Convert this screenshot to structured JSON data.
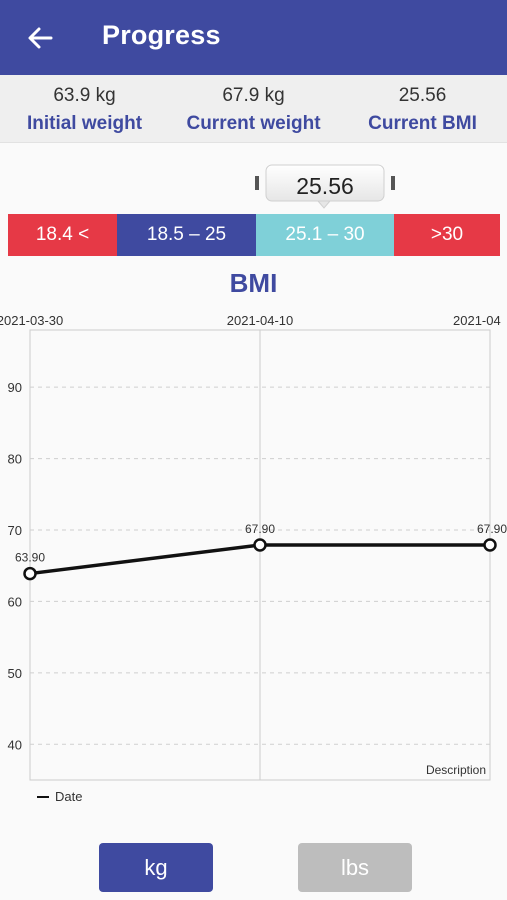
{
  "header": {
    "title": "Progress",
    "back_icon": "arrow-left-icon"
  },
  "stats": [
    {
      "value": "63.9 kg",
      "label": "Initial weight"
    },
    {
      "value": "67.9 kg",
      "label": "Current weight"
    },
    {
      "value": "25.56",
      "label": "Current BMI"
    }
  ],
  "bmi_indicator": {
    "value": "25.56"
  },
  "bmi_scale": [
    {
      "label": "18.4 <",
      "color": "#e63946"
    },
    {
      "label": "18.5 – 25",
      "color": "#3f4aa0"
    },
    {
      "label": "25.1 – 30",
      "color": "#7fd0d8"
    },
    {
      "label": ">30",
      "color": "#e63946"
    }
  ],
  "chart_title": "BMI",
  "chart_data": {
    "type": "line",
    "x": [
      "2021-03-30",
      "2021-04-10",
      "2021-04"
    ],
    "series": [
      {
        "name": "Date",
        "values": [
          63.9,
          67.9,
          67.9
        ]
      }
    ],
    "point_labels": [
      "63.90",
      "67.90",
      "67.90"
    ],
    "ytick_labels": [
      "90",
      "80",
      "70",
      "60",
      "50",
      "40"
    ],
    "yticks": [
      90,
      80,
      70,
      60,
      50,
      40
    ],
    "ylim": [
      35,
      98
    ],
    "grid": true,
    "description": "Description",
    "legend_position": "bottom-left"
  },
  "units": {
    "kg": "kg",
    "lbs": "lbs"
  }
}
